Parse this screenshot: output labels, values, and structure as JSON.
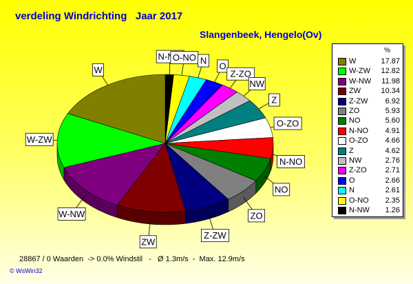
{
  "header": {
    "title": "verdeling Windrichting   Jaar 2017",
    "subtitle": "Slangenbeek, Hengelo(Ov)"
  },
  "footer": {
    "stats": "28867 / 0 Waarden  -> 0.0% Windstil   -   Ø 1.3m/s  -  Max. 12.9m/s",
    "brand": "© WsWin32"
  },
  "chart_data": {
    "type": "pie",
    "legend_header": "%",
    "legend_position": "right",
    "slices": [
      {
        "label": "W",
        "value": 17.87,
        "color": "#808000"
      },
      {
        "label": "W-ZW",
        "value": 12.82,
        "color": "#00ff00"
      },
      {
        "label": "W-NW",
        "value": 11.98,
        "color": "#800080"
      },
      {
        "label": "ZW",
        "value": 10.34,
        "color": "#800000"
      },
      {
        "label": "Z-ZW",
        "value": 6.92,
        "color": "#000080"
      },
      {
        "label": "ZO",
        "value": 5.93,
        "color": "#808080"
      },
      {
        "label": "NO",
        "value": 5.6,
        "color": "#008000"
      },
      {
        "label": "N-NO",
        "value": 4.91,
        "color": "#ff0000"
      },
      {
        "label": "O-ZO",
        "value": 4.66,
        "color": "#ffffff"
      },
      {
        "label": "Z",
        "value": 4.62,
        "color": "#008080"
      },
      {
        "label": "NW",
        "value": 2.76,
        "color": "#c0c0c0"
      },
      {
        "label": "Z-ZO",
        "value": 2.71,
        "color": "#ff00ff"
      },
      {
        "label": "O",
        "value": 2.66,
        "color": "#0000ff"
      },
      {
        "label": "N",
        "value": 2.61,
        "color": "#00ffff"
      },
      {
        "label": "O-NO",
        "value": 2.35,
        "color": "#ffff00"
      },
      {
        "label": "N-NW",
        "value": 1.26,
        "color": "#000000"
      }
    ],
    "draw_order": [
      "N-NW",
      "O-NO",
      "N",
      "O",
      "Z-ZO",
      "NW",
      "Z",
      "O-ZO",
      "N-NO",
      "NO",
      "ZO",
      "Z-ZW",
      "ZW",
      "W-NW",
      "W-ZW",
      "W"
    ],
    "value_display": [
      "17.87",
      "12.82",
      "11.98",
      "10.34",
      "6.92",
      "5.93",
      "5.60",
      "4.91",
      "4.66",
      "4.62",
      "2.76",
      "2.71",
      "2.66",
      "2.61",
      "2.35",
      "1.26"
    ]
  }
}
